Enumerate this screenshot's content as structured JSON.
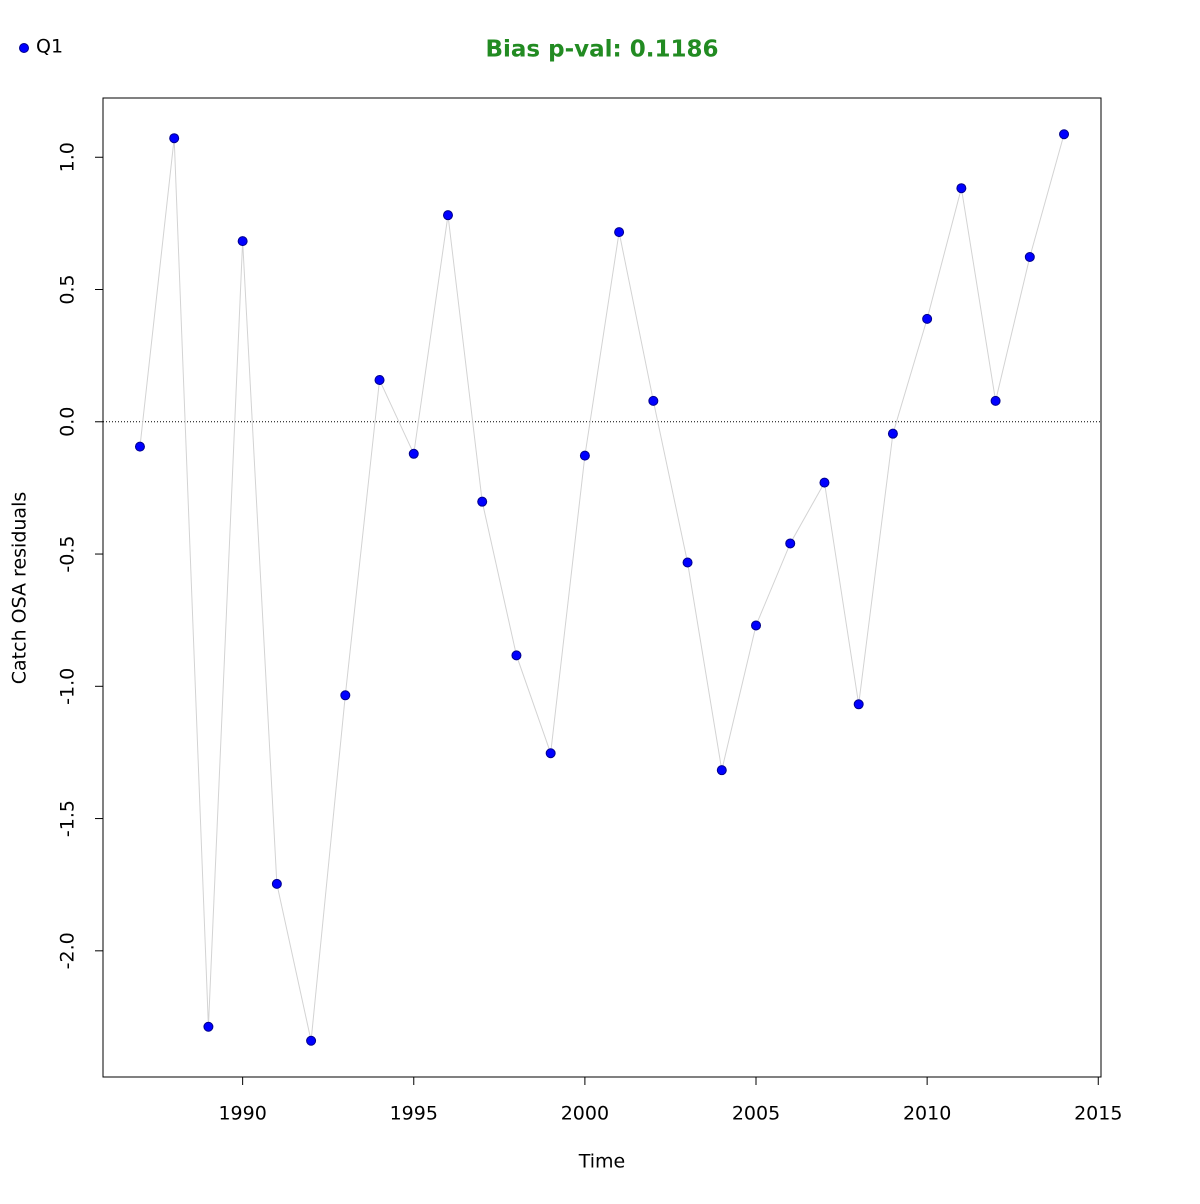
{
  "chart_data": {
    "type": "line",
    "title": "Bias p-val: 0.1186",
    "title_color": "#228b22",
    "xlabel": "Time",
    "ylabel": "Catch OSA residuals",
    "x": [
      1987,
      1988,
      1989,
      1990,
      1991,
      1992,
      1993,
      1994,
      1995,
      1996,
      1997,
      1998,
      1999,
      2000,
      2001,
      2002,
      2003,
      2004,
      2005,
      2006,
      2007,
      2008,
      2009,
      2010,
      2011,
      2012,
      2013,
      2014
    ],
    "series": [
      {
        "name": "Q1",
        "color": "#0000ff",
        "line_color": "#d3d3d3",
        "values": [
          -0.094,
          1.072,
          -2.287,
          0.683,
          -1.747,
          -2.34,
          -1.034,
          0.158,
          -0.121,
          0.781,
          -0.302,
          -0.883,
          -1.253,
          -0.128,
          0.717,
          0.079,
          -0.532,
          -1.317,
          -0.77,
          -0.46,
          -0.23,
          -1.068,
          -0.045,
          0.389,
          0.883,
          0.079,
          0.623,
          1.087
        ]
      }
    ],
    "xlim": [
      1985.92,
      2015.08
    ],
    "xticks": [
      1990,
      1995,
      2000,
      2005,
      2010,
      2015
    ],
    "ylim": [
      -2.477,
      1.224
    ],
    "yticks": [
      {
        "value": -2,
        "label": "-2.0"
      },
      -1.5,
      {
        "value": -1,
        "label": "-1.0"
      },
      -0.5,
      {
        "value": 0,
        "label": "0.0"
      },
      0.5,
      {
        "value": 1,
        "label": "1.0"
      }
    ],
    "hline": 0,
    "legend": "top-left"
  }
}
